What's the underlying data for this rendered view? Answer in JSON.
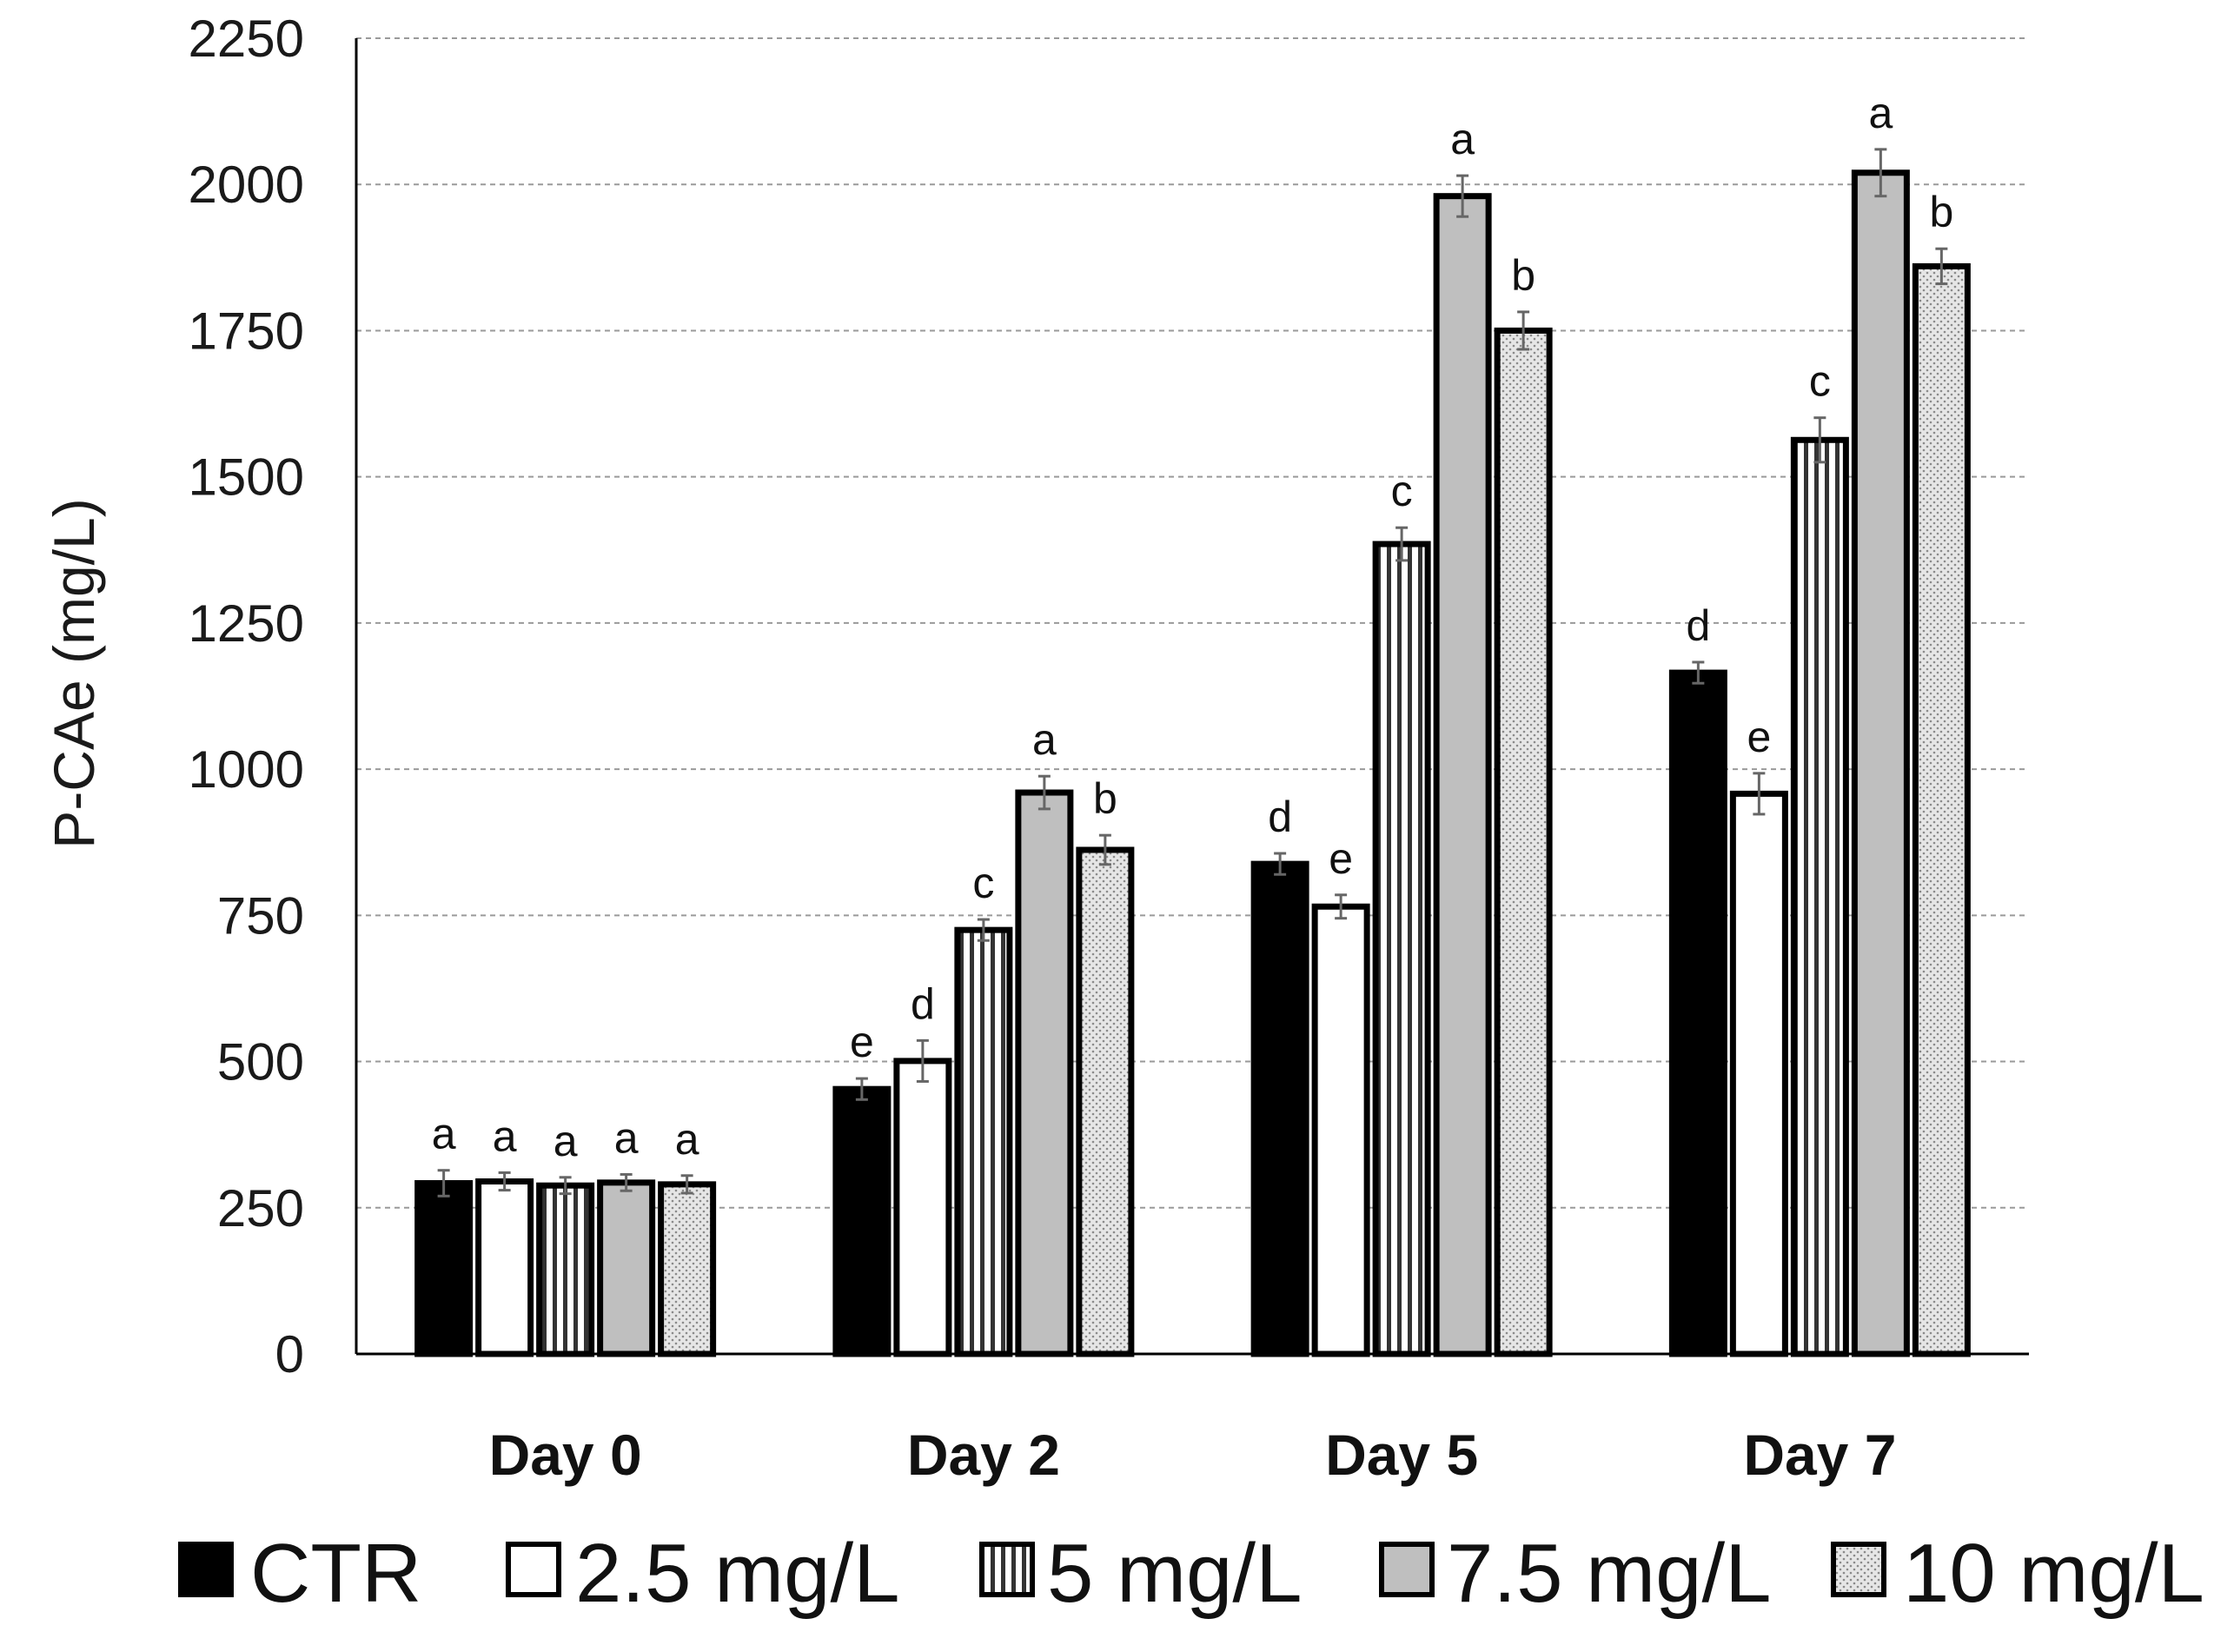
{
  "chart_data": {
    "type": "bar",
    "title": "",
    "xlabel": "",
    "ylabel": "P-CAe (mg/L)",
    "ylim": [
      0,
      2250
    ],
    "yticks": [
      0,
      250,
      500,
      750,
      1000,
      1250,
      1500,
      1750,
      2000,
      2250
    ],
    "grid": "dashed horizontal",
    "legend_position": "bottom",
    "categories": [
      "Day 0",
      "Day 2",
      "Day 5",
      "Day 7"
    ],
    "series": [
      {
        "name": "CTR",
        "pattern": "solid-black",
        "values": [
          292,
          453,
          838,
          1165
        ],
        "errors": [
          22,
          18,
          18,
          18
        ],
        "letters": [
          "a",
          "e",
          "d",
          "d"
        ]
      },
      {
        "name": "2.5 mg/L",
        "pattern": "white",
        "values": [
          295,
          501,
          765,
          958
        ],
        "errors": [
          15,
          35,
          20,
          35
        ],
        "letters": [
          "a",
          "d",
          "e",
          "e"
        ]
      },
      {
        "name": "5 mg/L",
        "pattern": "vertical-stripes",
        "values": [
          288,
          725,
          1385,
          1563
        ],
        "errors": [
          14,
          18,
          28,
          38
        ],
        "letters": [
          "a",
          "c",
          "c",
          "c"
        ]
      },
      {
        "name": "7.5 mg/L",
        "pattern": "grey",
        "values": [
          293,
          960,
          1980,
          2020
        ],
        "errors": [
          14,
          28,
          35,
          40
        ],
        "letters": [
          "a",
          "a",
          "a",
          "a"
        ]
      },
      {
        "name": "10 mg/L",
        "pattern": "dots",
        "values": [
          290,
          862,
          1750,
          1860
        ],
        "errors": [
          15,
          25,
          32,
          30
        ],
        "letters": [
          "a",
          "b",
          "b",
          "b"
        ]
      }
    ]
  }
}
